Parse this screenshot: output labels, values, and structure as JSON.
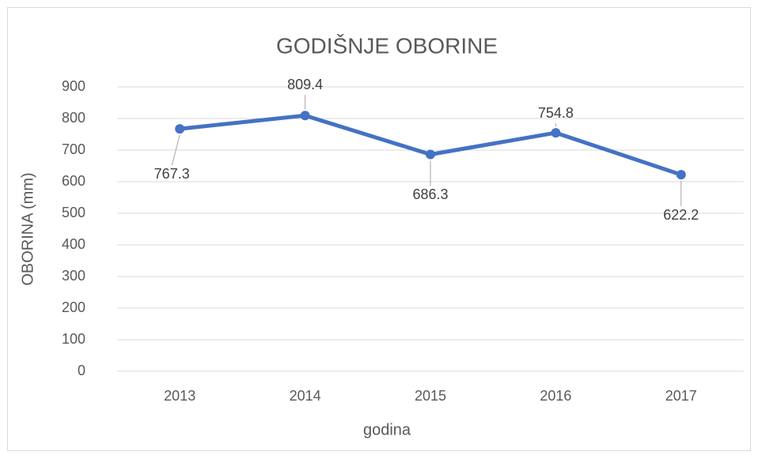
{
  "chart_data": {
    "type": "line",
    "title": "GODIŠNJE OBORINE",
    "x_label": "godina",
    "y_label": "OBORINA (mm)",
    "categories": [
      "2013",
      "2014",
      "2015",
      "2016",
      "2017"
    ],
    "series": [
      {
        "name": "OBORINA (mm)",
        "color": "#4472c4",
        "values": [
          767.3,
          809.4,
          686.3,
          754.8,
          622.2
        ]
      }
    ],
    "ylim": [
      0,
      900
    ],
    "yticks": [
      0,
      100,
      200,
      300,
      400,
      500,
      600,
      700,
      800,
      900
    ],
    "grid": true
  }
}
